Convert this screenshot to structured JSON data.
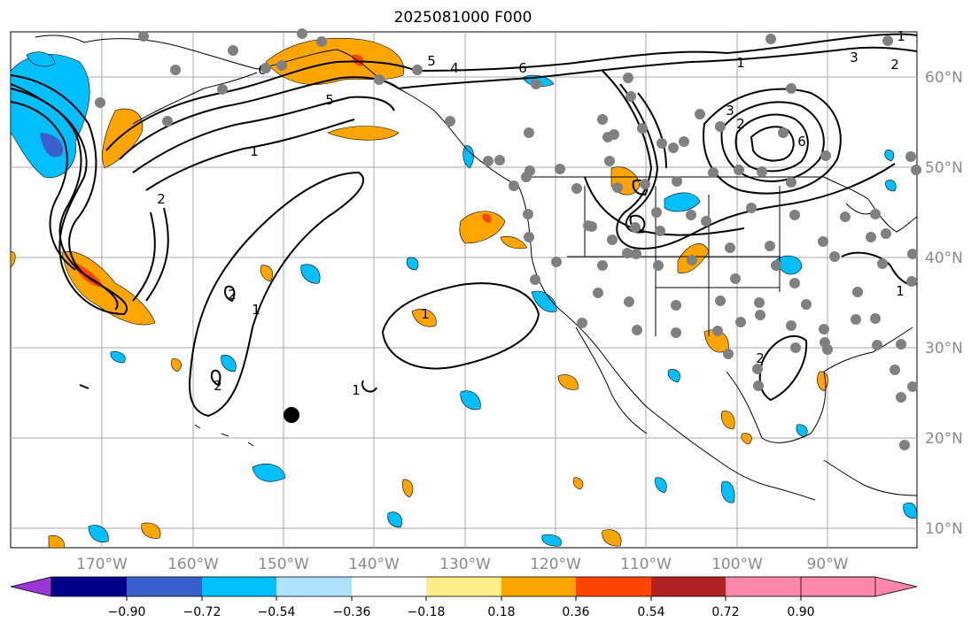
{
  "title": "2025081000 F000",
  "lon_labels": [
    "170°W",
    "160°W",
    "150°W",
    "140°W",
    "130°W",
    "120°W",
    "110°W",
    "100°W",
    "90°W"
  ],
  "lat_labels": [
    "60°N",
    "50°N",
    "40°N",
    "30°N",
    "20°N",
    "10°N"
  ],
  "colorbar": {
    "ticks": [
      "−0.90",
      "−0.72",
      "−0.54",
      "−0.36",
      "−0.18",
      "0.18",
      "0.36",
      "0.54",
      "0.72",
      "0.90"
    ],
    "colors": [
      "#9b36d4",
      "#000088",
      "#3a5fcd",
      "#00bfff",
      "#b0e2ff",
      "#ffffff",
      "#ffee88",
      "#ffa500",
      "#ff4500",
      "#b22222",
      "#ff88aa"
    ]
  },
  "contour_labels": [
    "1",
    "2",
    "5",
    "4",
    "6",
    "1",
    "2",
    "5",
    "1",
    "1",
    "2",
    "1",
    "2",
    "6",
    "1",
    "2",
    "3",
    "6",
    "3",
    "2",
    "1"
  ]
}
